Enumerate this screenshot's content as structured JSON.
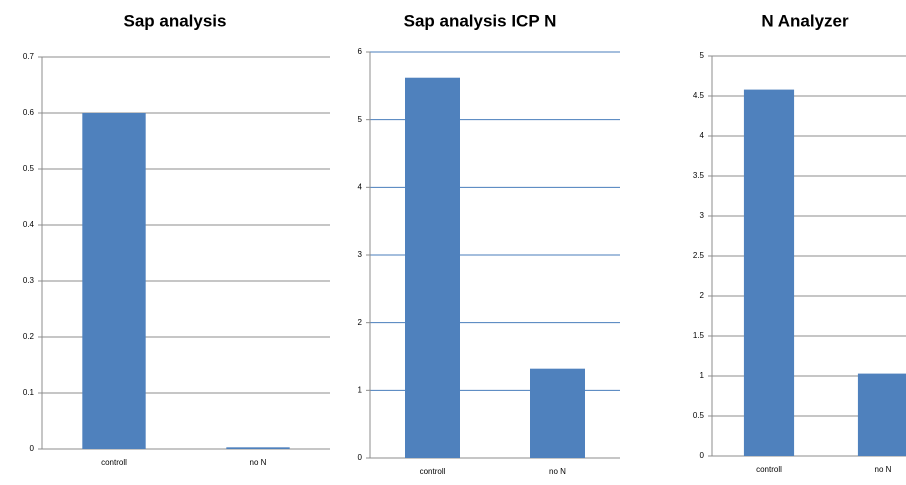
{
  "chart_data": [
    {
      "type": "bar",
      "title": "Sap analysis",
      "categories": [
        "controll",
        "no N"
      ],
      "values": [
        0.6,
        0.003
      ],
      "color": "#4f81bd",
      "ylim": [
        0,
        0.7
      ],
      "yticks": [
        0,
        0.1,
        0.2,
        0.3,
        0.4,
        0.5,
        0.6,
        0.7
      ],
      "grid": true,
      "grid_color": "#8c8c8c"
    },
    {
      "type": "bar",
      "title": "Sap analysis ICP N",
      "categories": [
        "controll",
        "no N"
      ],
      "values": [
        5.62,
        1.32
      ],
      "color": "#4f81bd",
      "ylim": [
        0,
        6
      ],
      "yticks": [
        0,
        1,
        2,
        3,
        4,
        5,
        6
      ],
      "grid": true,
      "grid_color": "#4a7ebb"
    },
    {
      "type": "bar",
      "title": "N Analyzer",
      "categories": [
        "controll",
        "no N"
      ],
      "values": [
        4.58,
        1.03
      ],
      "color": "#4f81bd",
      "ylim": [
        0,
        5
      ],
      "yticks": [
        0,
        0.5,
        1,
        1.5,
        2,
        2.5,
        3,
        3.5,
        4,
        4.5,
        5
      ],
      "grid": true,
      "grid_color": "#8c8c8c"
    }
  ]
}
